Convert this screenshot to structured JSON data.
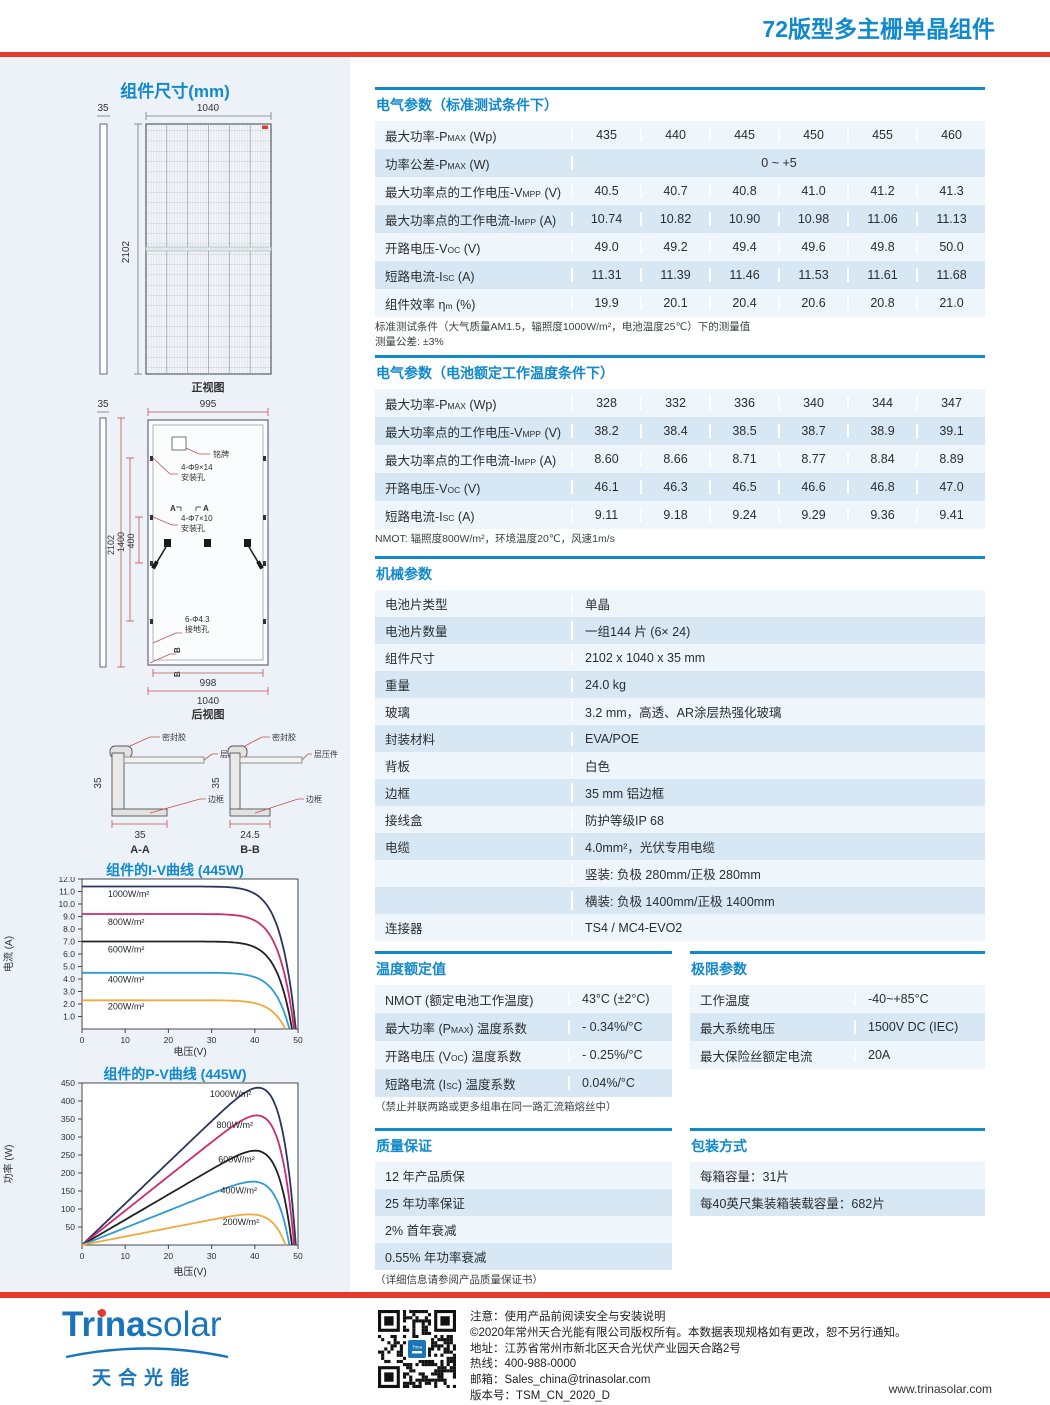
{
  "page": {
    "title": "72版型多主栅单晶组件",
    "website": "www.trinasolar.com"
  },
  "logo": {
    "trina": "Trina",
    "solar": "solar",
    "cn": "天合光能"
  },
  "dims": {
    "title": "组件尺寸(mm)",
    "front": {
      "w": "1040",
      "t": "35",
      "h": "2102",
      "caption": "正视图"
    },
    "rear": {
      "t": "35",
      "w_top": "995",
      "h": "2102",
      "h_mid": "1400",
      "h_in": "400",
      "w_in": "998",
      "w_out": "1040",
      "caption": "后视图",
      "nameplate": "铭牌",
      "holes1": "4-Φ9×14",
      "holes1_sub": "安装孔",
      "holes2": "4-Φ7×10",
      "holes2_sub": "安装孔",
      "ground": "6-Φ4.3",
      "ground_sub": "接地孔",
      "secA": "A",
      "secB": "B"
    },
    "cs": {
      "sealant": "密封胶",
      "laminate": "层压件",
      "frame": "边框",
      "aa_h": "35",
      "aa_w": "35",
      "aa": "A-A",
      "bb_h": "35",
      "bb_w": "24.5",
      "bb": "B-B"
    }
  },
  "sections": {
    "stc": {
      "title": "电气参数（标准测试条件下）",
      "rows": [
        {
          "label": "最大功率-P{MAX} (Wp)",
          "values": [
            "435",
            "440",
            "445",
            "450",
            "455",
            "460"
          ]
        },
        {
          "label": "功率公差-P{MAX} (W)",
          "span": "0 ~ +5"
        },
        {
          "label": "最大功率点的工作电压-V{MPP} (V)",
          "values": [
            "40.5",
            "40.7",
            "40.8",
            "41.0",
            "41.2",
            "41.3"
          ]
        },
        {
          "label": "最大功率点的工作电流-I{MPP} (A)",
          "values": [
            "10.74",
            "10.82",
            "10.90",
            "10.98",
            "11.06",
            "11.13"
          ]
        },
        {
          "label": "开路电压-V{OC} (V)",
          "values": [
            "49.0",
            "49.2",
            "49.4",
            "49.6",
            "49.8",
            "50.0"
          ]
        },
        {
          "label": "短路电流-I{SC} (A)",
          "values": [
            "11.31",
            "11.39",
            "11.46",
            "11.53",
            "11.61",
            "11.68"
          ]
        },
        {
          "label": "组件效率 η{m} (%)",
          "values": [
            "19.9",
            "20.1",
            "20.4",
            "20.6",
            "20.8",
            "21.0"
          ]
        }
      ],
      "notes": [
        "标准测试条件（大气质量AM1.5，辐照度1000W/m²，电池温度25℃）下的测量值",
        "测量公差: ±3%"
      ]
    },
    "nmot": {
      "title": "电气参数（电池额定工作温度条件下）",
      "rows": [
        {
          "label": "最大功率-P{MAX} (Wp)",
          "values": [
            "328",
            "332",
            "336",
            "340",
            "344",
            "347"
          ]
        },
        {
          "label": "最大功率点的工作电压-V{MPP} (V)",
          "values": [
            "38.2",
            "38.4",
            "38.5",
            "38.7",
            "38.9",
            "39.1"
          ]
        },
        {
          "label": "最大功率点的工作电流-I{MPP} (A)",
          "values": [
            "8.60",
            "8.66",
            "8.71",
            "8.77",
            "8.84",
            "8.89"
          ]
        },
        {
          "label": "开路电压-V{OC} (V)",
          "values": [
            "46.1",
            "46.3",
            "46.5",
            "46.6",
            "46.8",
            "47.0"
          ]
        },
        {
          "label": "短路电流-I{SC} (A)",
          "values": [
            "9.11",
            "9.18",
            "9.24",
            "9.29",
            "9.36",
            "9.41"
          ]
        }
      ],
      "note": "NMOT: 辐照度800W/m²，环境温度20℃，风速1m/s"
    },
    "mech": {
      "title": "机械参数",
      "lines": [
        [
          "电池片类型",
          "单晶"
        ],
        [
          "电池片数量",
          "一组144 片 (6× 24)"
        ],
        [
          "组件尺寸",
          "2102 x 1040 x 35 mm"
        ],
        [
          "重量",
          "24.0 kg"
        ],
        [
          "玻璃",
          "3.2 mm，高透、AR涂层热强化玻璃"
        ],
        [
          "封装材料",
          "EVA/POE"
        ],
        [
          "背板",
          "白色"
        ],
        [
          "边框",
          "35 mm 铝边框"
        ],
        [
          "接线盒",
          "防护等级IP 68"
        ],
        [
          "电缆",
          "4.0mm²，光伏专用电缆"
        ],
        [
          "",
          "竖装: 负极 280mm/正极 280mm"
        ],
        [
          "",
          "横装: 负极 1400mm/正极 1400mm"
        ],
        [
          "连接器",
          "TS4 / MC4-EVO2"
        ]
      ]
    },
    "temp": {
      "title": "温度额定值",
      "rows": [
        [
          "NMOT (额定电池工作温度)",
          "43°C (±2°C)"
        ],
        [
          "最大功率 (P{MAX}) 温度系数",
          "- 0.34%/°C"
        ],
        [
          "开路电压 (V{OC}) 温度系数",
          "- 0.25%/°C"
        ],
        [
          "短路电流 (I{SC}) 温度系数",
          "0.04%/°C"
        ]
      ],
      "note": "（禁止并联两路或更多组串在同一路汇流箱熔丝中）"
    },
    "limits": {
      "title": "极限参数",
      "rows": [
        [
          "工作温度",
          "-40~+85°C"
        ],
        [
          "最大系统电压",
          "1500V DC (IEC)"
        ],
        [
          "最大保险丝额定电流",
          "20A"
        ]
      ]
    },
    "warranty": {
      "title": "质量保证",
      "items": [
        "12 年产品质保",
        "25 年功率保证",
        "2% 首年衰减",
        "0.55% 年功率衰减"
      ],
      "note": "（详细信息请参阅产品质量保证书）"
    },
    "packing": {
      "title": "包装方式",
      "items": [
        "每箱容量：31片",
        "每40英尺集装箱装载容量：682片"
      ]
    }
  },
  "footer": {
    "lines": [
      "注意：使用产品前阅读安全与安装说明",
      "©2020年常州天合光能有限公司版权所有。本数据表现规格如有更改，恕不另行通知。",
      "地址：江苏省常州市新北区天合光伏产业园天合路2号",
      "热线：400-988-0000",
      "邮箱：Sales_china@trinasolar.com",
      "版本号：TSM_CN_2020_D"
    ]
  },
  "chart_data": [
    {
      "type": "line",
      "title": "组件的I-V曲线 (445W)",
      "xlabel": "电压(V)",
      "ylabel": "电流 (A)",
      "xlim": [
        0,
        50
      ],
      "ylim": [
        0,
        12
      ],
      "xticks": [
        0,
        10,
        20,
        30,
        40,
        50
      ],
      "yticks": [
        1,
        2,
        3,
        4,
        5,
        6,
        7,
        8,
        9,
        10,
        11,
        12
      ],
      "grid": false,
      "legend_position": "inline-left",
      "series": [
        {
          "name": "1000W/m²",
          "irradiance": 1000,
          "isc": 11.4,
          "voc": 49.5,
          "color": "#2a3560",
          "label_x": 6,
          "label_y": 10.8
        },
        {
          "name": "800W/m²",
          "irradiance": 800,
          "isc": 9.2,
          "voc": 49.1,
          "color": "#ce2a6c",
          "label_x": 6,
          "label_y": 8.55
        },
        {
          "name": "600W/m²",
          "irradiance": 600,
          "isc": 7.0,
          "voc": 48.6,
          "color": "#1f2125",
          "label_x": 6,
          "label_y": 6.35
        },
        {
          "name": "400W/m²",
          "irradiance": 400,
          "isc": 4.5,
          "voc": 48.0,
          "color": "#2e9bd6",
          "label_x": 6,
          "label_y": 3.95
        },
        {
          "name": "200W/m²",
          "irradiance": 200,
          "isc": 2.3,
          "voc": 47.1,
          "color": "#efa93d",
          "label_x": 6,
          "label_y": 1.8
        }
      ]
    },
    {
      "type": "line",
      "title": "组件的P-V曲线 (445W)",
      "xlabel": "电压(V)",
      "ylabel": "功率 (W)",
      "xlim": [
        0,
        50
      ],
      "ylim": [
        0,
        450
      ],
      "xticks": [
        0,
        10,
        20,
        30,
        40,
        50
      ],
      "yticks": [
        50,
        100,
        150,
        200,
        250,
        300,
        350,
        400,
        450
      ],
      "grid": false,
      "legend_position": "inline-right",
      "series": [
        {
          "name": "1000W/m²",
          "irradiance": 1000,
          "isc": 11.4,
          "voc": 49.5,
          "pmax": 437,
          "vmp": 40.5,
          "color": "#2a3560",
          "label_x": 39.2,
          "label_y": 420
        },
        {
          "name": "800W/m²",
          "irradiance": 800,
          "isc": 9.2,
          "voc": 49.1,
          "pmax": 360,
          "vmp": 40.4,
          "color": "#ce2a6c",
          "label_x": 39.6,
          "label_y": 333
        },
        {
          "name": "600W/m²",
          "irradiance": 600,
          "isc": 7.0,
          "voc": 48.6,
          "pmax": 262,
          "vmp": 40.2,
          "color": "#1f2125",
          "label_x": 40.0,
          "label_y": 238
        },
        {
          "name": "400W/m²",
          "irradiance": 400,
          "isc": 4.5,
          "voc": 48.0,
          "pmax": 176,
          "vmp": 40.0,
          "color": "#2e9bd6",
          "label_x": 40.5,
          "label_y": 152
        },
        {
          "name": "200W/m²",
          "irradiance": 200,
          "isc": 2.3,
          "voc": 47.1,
          "pmax": 85,
          "vmp": 39.8,
          "color": "#efa93d",
          "label_x": 41.0,
          "label_y": 64
        }
      ]
    }
  ]
}
